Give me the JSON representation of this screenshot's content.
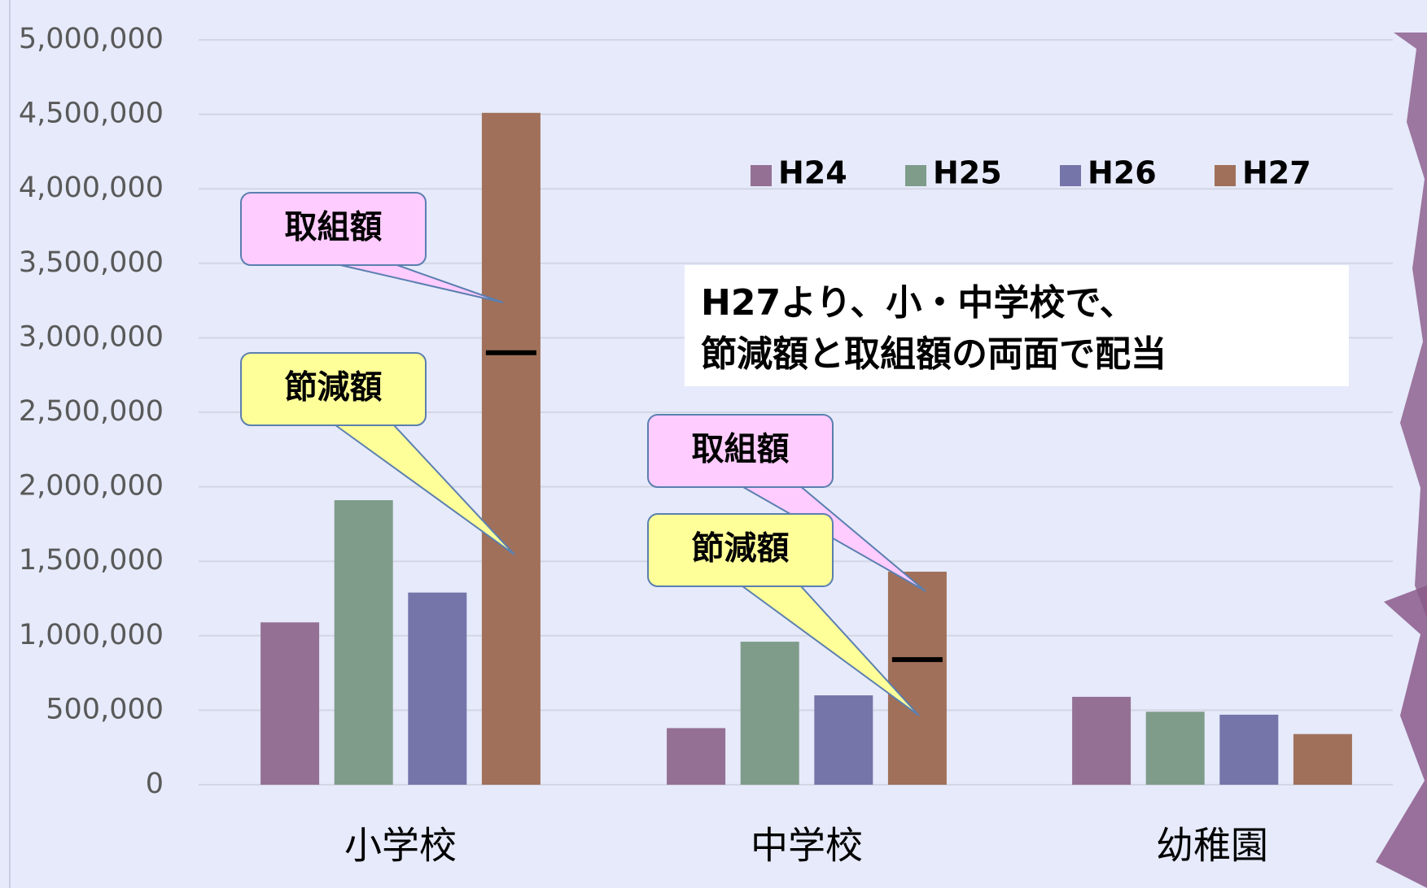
{
  "chart_data": {
    "type": "bar",
    "categories": [
      "小学校",
      "中学校",
      "幼稚園"
    ],
    "series": [
      {
        "name": "H24",
        "color": "#957095",
        "values": [
          1090000,
          380000,
          590000
        ]
      },
      {
        "name": "H25",
        "color": "#7f9c8b",
        "values": [
          1910000,
          960000,
          490000
        ]
      },
      {
        "name": "H26",
        "color": "#7575aa",
        "values": [
          1290000,
          600000,
          470000
        ]
      },
      {
        "name": "H27",
        "color": "#a0705a",
        "values": [
          4510000,
          1430000,
          340000
        ]
      }
    ],
    "dividers": [
      2900000,
      840000,
      null
    ],
    "ylim": [
      0,
      5000000
    ],
    "yticks": [
      0,
      {
        "value": 500000,
        "label": "500,000"
      },
      {
        "value": 1000000,
        "label": "1,000,000"
      },
      {
        "value": 1500000,
        "label": "1,500,000"
      },
      {
        "value": 2000000,
        "label": "2,000,000"
      },
      {
        "value": 2500000,
        "label": "2,500,000"
      },
      {
        "value": 3000000,
        "label": "3,000,000"
      },
      {
        "value": 3500000,
        "label": "3,500,000"
      },
      {
        "value": 4000000,
        "label": "4,000,000"
      },
      {
        "value": 4500000,
        "label": "4,500,000"
      },
      {
        "value": 5000000,
        "label": "5,000,000"
      }
    ],
    "grid": true,
    "legend": "top-right",
    "annotations": [
      {
        "text": "取組額",
        "color": "#ffccff"
      },
      {
        "text": "節減額",
        "color": "#ffff99"
      },
      {
        "text": "取組額",
        "color": "#ffccff"
      },
      {
        "text": "節減額",
        "color": "#ffff99"
      }
    ],
    "note": [
      "H27より、小・中学校で、",
      "節減額と取組額の両面で配当"
    ]
  }
}
